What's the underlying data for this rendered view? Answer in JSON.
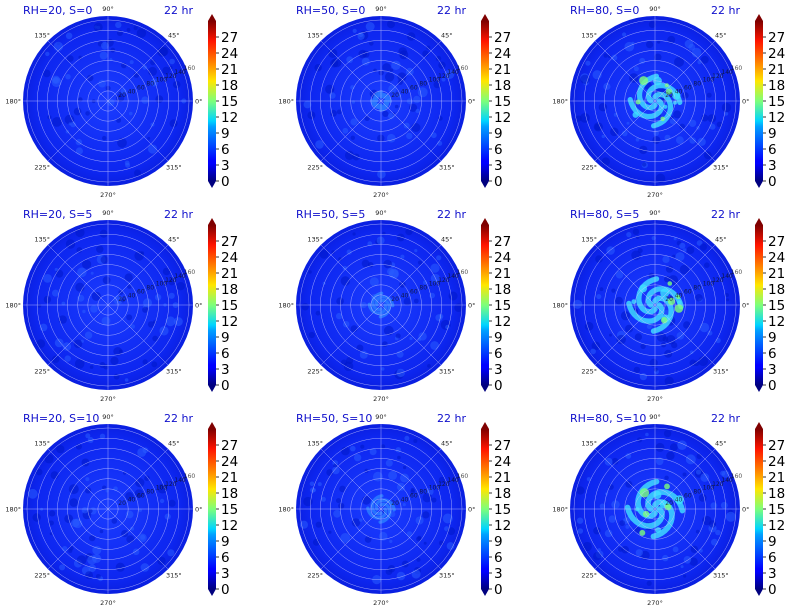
{
  "chart_data": [
    {
      "type": "heatmap",
      "title_left": "RH=20, S=0",
      "title_right": "22 hr",
      "intensity": 0.05
    },
    {
      "type": "heatmap",
      "title_left": "RH=50, S=0",
      "title_right": "22 hr",
      "intensity": 0.2
    },
    {
      "type": "heatmap",
      "title_left": "RH=80, S=0",
      "title_right": "22 hr",
      "intensity": 0.8
    },
    {
      "type": "heatmap",
      "title_left": "RH=20, S=5",
      "title_right": "22 hr",
      "intensity": 0.08
    },
    {
      "type": "heatmap",
      "title_left": "RH=50, S=5",
      "title_right": "22 hr",
      "intensity": 0.3
    },
    {
      "type": "heatmap",
      "title_left": "RH=80, S=5",
      "title_right": "22 hr",
      "intensity": 0.85
    },
    {
      "type": "heatmap",
      "title_left": "RH=20, S=10",
      "title_right": "22 hr",
      "intensity": 0.1
    },
    {
      "type": "heatmap",
      "title_left": "RH=50, S=10",
      "title_right": "22 hr",
      "intensity": 0.35
    },
    {
      "type": "heatmap",
      "title_left": "RH=80, S=10",
      "title_right": "22 hr",
      "intensity": 0.9
    }
  ],
  "shared": {
    "angle_labels": [
      "0°",
      "45°",
      "90°",
      "135°",
      "180°",
      "225°",
      "270°",
      "315°"
    ],
    "radial_labels": [
      "20",
      "40",
      "60",
      "80",
      "100",
      "120",
      "140",
      "160"
    ],
    "colorbar_ticks": [
      "0",
      "3",
      "6",
      "9",
      "12",
      "15",
      "18",
      "21",
      "24",
      "27"
    ],
    "colorbar_range": [
      0,
      30
    ],
    "colormap": "jet"
  }
}
